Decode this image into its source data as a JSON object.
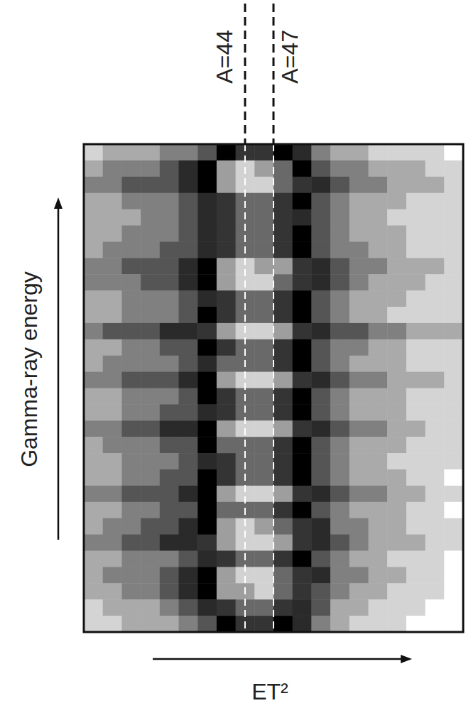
{
  "chart_data": {
    "type": "heatmap",
    "xlabel": "ET²",
    "ylabel": "Gamma-ray energy",
    "xlim": [
      27,
      67
    ],
    "ylim": [
      0,
      30
    ],
    "tick_labels": false,
    "zlim": [
      0,
      10
    ],
    "x": [
      28,
      30,
      32,
      34,
      36,
      38,
      40,
      42,
      44,
      46,
      48,
      50,
      52,
      54,
      56,
      58,
      60,
      62,
      64,
      66
    ],
    "y": [
      29.5,
      28.5,
      27.5,
      26.5,
      25.5,
      24.5,
      23.5,
      22.5,
      21.5,
      20.5,
      19.5,
      18.5,
      17.5,
      16.5,
      15.5,
      14.5,
      13.5,
      12.5,
      11.5,
      10.5,
      9.5,
      8.5,
      7.5,
      6.5,
      5.5,
      4.5,
      3.5,
      2.5,
      1.5,
      0.5
    ],
    "cells": [
      [
        1,
        2,
        2,
        2,
        3,
        3,
        4,
        6,
        7,
        7,
        6,
        5,
        3,
        2,
        2,
        1,
        1,
        1,
        1,
        0
      ],
      [
        2,
        3,
        3,
        3,
        4,
        5,
        6,
        9,
        10,
        9,
        8,
        6,
        4,
        3,
        3,
        2,
        2,
        2,
        1,
        1
      ],
      [
        3,
        3,
        4,
        4,
        4,
        5,
        6,
        9,
        10,
        10,
        8,
        7,
        5,
        4,
        3,
        3,
        2,
        2,
        2,
        1
      ],
      [
        2,
        2,
        3,
        3,
        3,
        4,
        5,
        7,
        8,
        8,
        7,
        6,
        4,
        3,
        2,
        2,
        2,
        1,
        1,
        1
      ],
      [
        2,
        2,
        2,
        3,
        3,
        4,
        5,
        7,
        8,
        8,
        7,
        5,
        4,
        3,
        2,
        2,
        1,
        1,
        1,
        1
      ],
      [
        2,
        2,
        3,
        3,
        3,
        4,
        5,
        7,
        8,
        8,
        7,
        6,
        4,
        3,
        2,
        2,
        2,
        1,
        1,
        1
      ],
      [
        2,
        3,
        3,
        3,
        4,
        4,
        5,
        7,
        8,
        8,
        7,
        6,
        4,
        3,
        3,
        2,
        2,
        1,
        1,
        1
      ],
      [
        3,
        3,
        4,
        4,
        4,
        5,
        6,
        9,
        10,
        9,
        9,
        7,
        5,
        4,
        3,
        3,
        2,
        2,
        2,
        1
      ],
      [
        3,
        3,
        3,
        4,
        4,
        5,
        6,
        9,
        10,
        10,
        8,
        7,
        5,
        4,
        3,
        2,
        2,
        2,
        1,
        1
      ],
      [
        2,
        2,
        3,
        3,
        3,
        4,
        5,
        7,
        8,
        8,
        7,
        6,
        4,
        3,
        2,
        2,
        2,
        1,
        1,
        1
      ],
      [
        2,
        2,
        3,
        3,
        3,
        4,
        6,
        7,
        8,
        8,
        7,
        6,
        4,
        3,
        2,
        2,
        1,
        1,
        1,
        1
      ],
      [
        3,
        4,
        4,
        4,
        5,
        5,
        7,
        9,
        10,
        10,
        9,
        7,
        5,
        4,
        4,
        3,
        3,
        2,
        2,
        2
      ],
      [
        2,
        2,
        3,
        3,
        4,
        4,
        6,
        7,
        8,
        8,
        7,
        6,
        4,
        3,
        3,
        2,
        2,
        1,
        1,
        1
      ],
      [
        2,
        3,
        3,
        3,
        3,
        4,
        5,
        8,
        8,
        8,
        7,
        6,
        4,
        3,
        2,
        2,
        2,
        1,
        1,
        1
      ],
      [
        3,
        3,
        4,
        4,
        4,
        5,
        6,
        9,
        10,
        10,
        9,
        7,
        5,
        4,
        3,
        3,
        2,
        2,
        2,
        1
      ],
      [
        2,
        2,
        3,
        3,
        3,
        4,
        6,
        7,
        8,
        8,
        7,
        6,
        4,
        3,
        2,
        2,
        2,
        1,
        1,
        1
      ],
      [
        2,
        2,
        3,
        3,
        4,
        4,
        5,
        7,
        8,
        8,
        7,
        6,
        4,
        3,
        2,
        2,
        2,
        1,
        1,
        1
      ],
      [
        3,
        3,
        4,
        4,
        5,
        5,
        6,
        9,
        10,
        10,
        9,
        7,
        5,
        4,
        3,
        3,
        2,
        2,
        1,
        1
      ],
      [
        2,
        3,
        3,
        3,
        4,
        4,
        6,
        8,
        8,
        8,
        7,
        6,
        4,
        3,
        2,
        2,
        2,
        1,
        1,
        1
      ],
      [
        2,
        2,
        3,
        3,
        3,
        4,
        5,
        7,
        8,
        8,
        7,
        6,
        4,
        3,
        2,
        2,
        1,
        1,
        1,
        1
      ],
      [
        2,
        2,
        3,
        3,
        4,
        4,
        6,
        7,
        8,
        8,
        7,
        6,
        4,
        3,
        2,
        2,
        2,
        1,
        1,
        0
      ],
      [
        3,
        3,
        4,
        4,
        4,
        5,
        6,
        9,
        10,
        10,
        9,
        7,
        5,
        4,
        3,
        3,
        2,
        2,
        1,
        1
      ],
      [
        2,
        2,
        3,
        3,
        4,
        4,
        6,
        8,
        8,
        8,
        7,
        6,
        4,
        3,
        2,
        2,
        2,
        1,
        1,
        0
      ],
      [
        2,
        3,
        3,
        4,
        4,
        5,
        6,
        9,
        10,
        9,
        8,
        7,
        5,
        3,
        3,
        2,
        2,
        1,
        1,
        1
      ],
      [
        3,
        3,
        4,
        4,
        5,
        5,
        7,
        9,
        10,
        10,
        9,
        7,
        5,
        4,
        3,
        2,
        2,
        2,
        1,
        1
      ],
      [
        2,
        2,
        3,
        3,
        3,
        4,
        5,
        7,
        8,
        8,
        7,
        6,
        4,
        3,
        2,
        2,
        1,
        1,
        1,
        0
      ],
      [
        2,
        3,
        3,
        3,
        4,
        5,
        6,
        9,
        10,
        10,
        8,
        7,
        5,
        3,
        3,
        2,
        2,
        1,
        1,
        0
      ],
      [
        2,
        2,
        3,
        3,
        4,
        5,
        6,
        9,
        9,
        10,
        8,
        7,
        4,
        3,
        2,
        2,
        1,
        1,
        1,
        0
      ],
      [
        1,
        2,
        2,
        2,
        3,
        4,
        5,
        7,
        8,
        8,
        7,
        5,
        4,
        2,
        2,
        1,
        1,
        1,
        0,
        0
      ],
      [
        1,
        1,
        2,
        2,
        2,
        3,
        4,
        6,
        7,
        7,
        6,
        5,
        3,
        2,
        1,
        1,
        1,
        0,
        0,
        0
      ]
    ],
    "lines": [
      {
        "x": 44,
        "label": "A=44"
      },
      {
        "x": 47,
        "label": "A=47"
      }
    ]
  }
}
